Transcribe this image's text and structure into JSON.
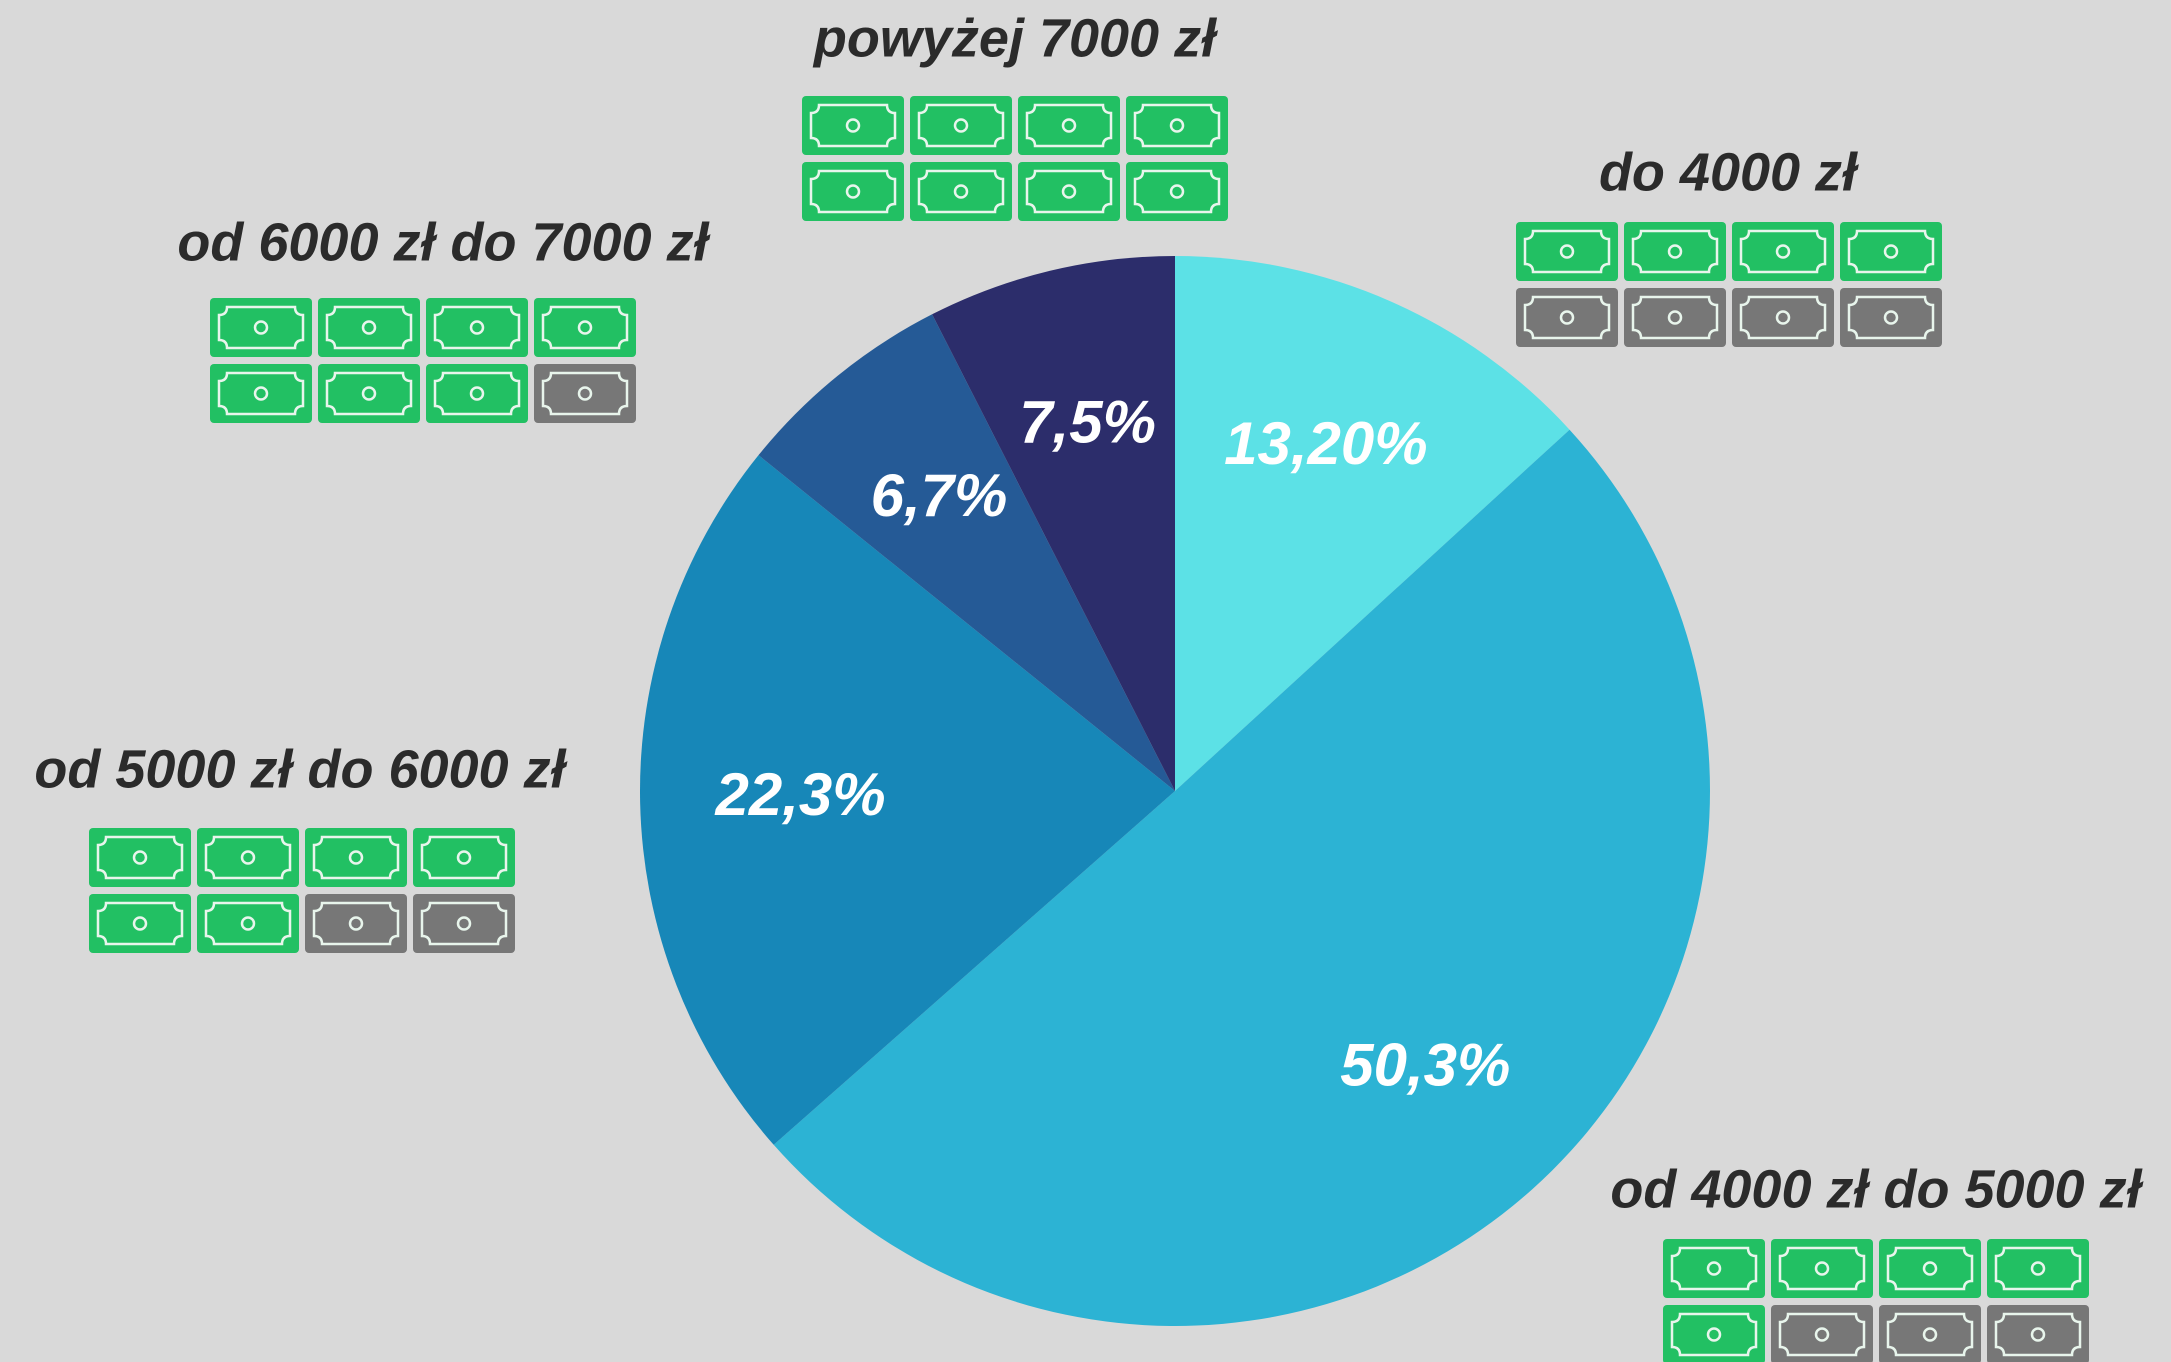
{
  "chart_data": {
    "type": "pie",
    "categories": [
      "do 4000 zł",
      "od 4000 zł do 5000 zł",
      "od 5000 zł do 6000 zł",
      "od 6000 zł do 7000 zł",
      "powyżej 7000 zł"
    ],
    "values": [
      13.2,
      50.3,
      22.3,
      6.7,
      7.5
    ],
    "value_labels": [
      "13,20%",
      "50,3%",
      "22,3%",
      "6,7%",
      "7,5%"
    ],
    "colors": [
      "#5ce1e6",
      "#2cb3d4",
      "#1787b8",
      "#255a96",
      "#2c2d6b"
    ]
  }
}
